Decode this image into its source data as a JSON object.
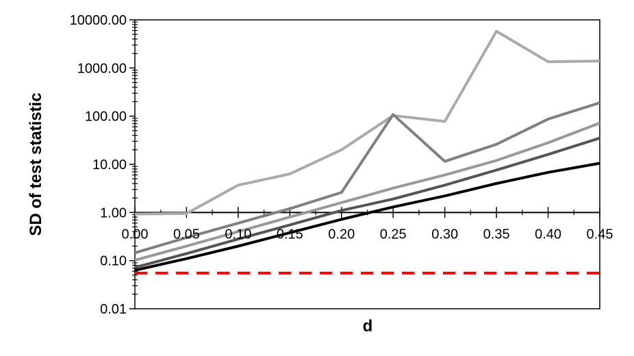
{
  "chart_data": {
    "type": "line",
    "xlabel": "d",
    "ylabel": "SD of test statistic",
    "y_scale": "log",
    "ylim": [
      0.01,
      10000
    ],
    "xlim": [
      0.0,
      0.45
    ],
    "x": [
      0.0,
      0.05,
      0.1,
      0.15,
      0.2,
      0.25,
      0.3,
      0.35,
      0.4,
      0.45
    ],
    "x_tick_labels": [
      "0.00",
      "0.05",
      "0.10",
      "0.15",
      "0.20",
      "0.25",
      "0.30",
      "0.35",
      "0.40",
      "0.45"
    ],
    "y_ticks": [
      0.01,
      0.1,
      1,
      10,
      100,
      1000,
      10000
    ],
    "y_tick_labels": [
      "0.01",
      "0.10",
      "1.00",
      "10.00",
      "100.00",
      "1000.00",
      "10000.00"
    ],
    "grid": false,
    "legend": "none",
    "series": [
      {
        "color": "#aaaaaa",
        "values": [
          0.93,
          0.95,
          3.7,
          6.3,
          20,
          103,
          78,
          5800,
          1350,
          1400
        ]
      },
      {
        "color": "#808080",
        "values": [
          0.145,
          0.3,
          0.6,
          1.2,
          2.6,
          108,
          11.5,
          26,
          87,
          190
        ]
      },
      {
        "color": "#999999",
        "values": [
          0.102,
          0.2,
          0.4,
          0.8,
          1.6,
          3.2,
          6.0,
          12,
          28,
          72
        ]
      },
      {
        "color": "#555555",
        "values": [
          0.072,
          0.14,
          0.28,
          0.55,
          1.1,
          1.9,
          3.7,
          7.6,
          16,
          35
        ]
      },
      {
        "color": "#000000",
        "values": [
          0.063,
          0.11,
          0.2,
          0.38,
          0.72,
          1.3,
          2.2,
          4.0,
          6.8,
          10.5
        ]
      },
      {
        "color": "#ff0000",
        "dashed": true,
        "values": [
          0.055,
          0.055,
          0.055,
          0.055,
          0.055,
          0.055,
          0.055,
          0.055,
          0.055,
          0.055
        ]
      }
    ]
  }
}
